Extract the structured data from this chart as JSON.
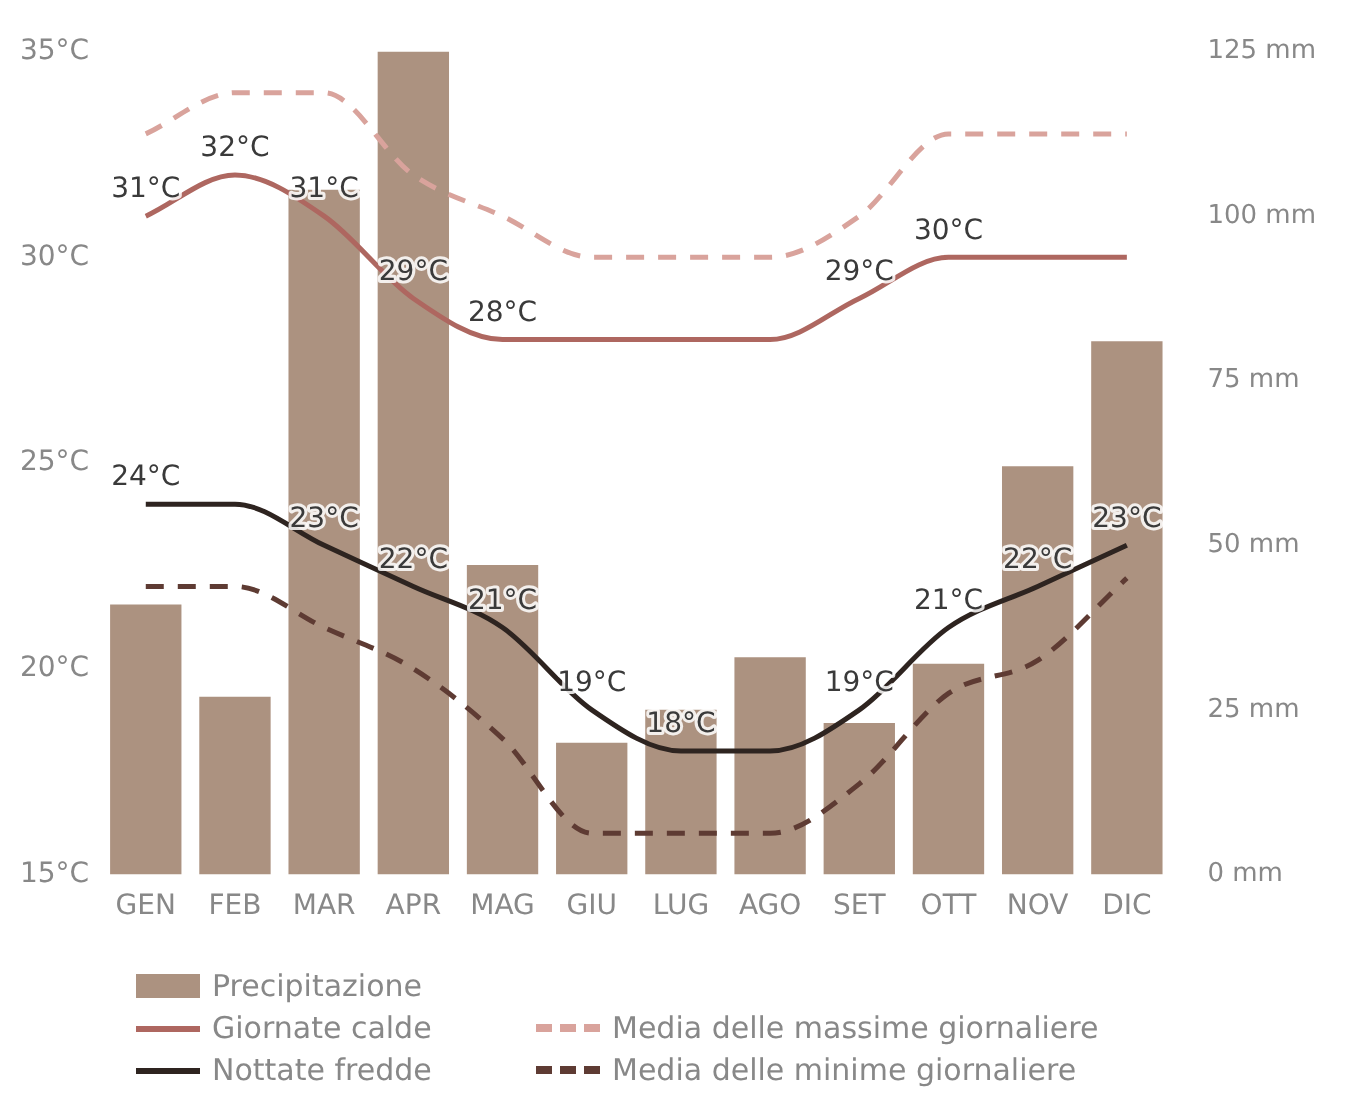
{
  "chart_data": {
    "type": "bar",
    "categories": [
      "GEN",
      "FEB",
      "MAR",
      "APR",
      "MAG",
      "GIU",
      "LUG",
      "AGO",
      "SET",
      "OTT",
      "NOV",
      "DIC"
    ],
    "series": [
      {
        "name": "Precipitazione",
        "axis": "y2",
        "color": "#ac9280",
        "values": [
          41,
          27,
          104,
          125,
          47,
          20,
          25,
          33,
          23,
          32,
          62,
          81
        ]
      },
      {
        "name": "Giornate calde",
        "type": "line",
        "color": "#ae6760",
        "line_style": "solid",
        "values": [
          31,
          32,
          31,
          29,
          28,
          28,
          28,
          28,
          29,
          30,
          30,
          30
        ],
        "value_labels": [
          "31°C",
          "32°C",
          "31°C",
          "29°C",
          "28°C",
          null,
          null,
          null,
          "29°C",
          "30°C",
          null,
          null
        ]
      },
      {
        "name": "Nottate fredde",
        "type": "line",
        "color": "#2e2420",
        "line_style": "solid",
        "values": [
          24,
          24,
          23,
          22,
          21,
          19,
          18,
          18,
          19,
          21,
          22,
          23
        ],
        "value_labels": [
          "24°C",
          null,
          "23°C",
          "22°C",
          "21°C",
          "19°C",
          "18°C",
          null,
          "19°C",
          "21°C",
          "22°C",
          "23°C"
        ]
      },
      {
        "name": "Media delle massime giornaliere",
        "type": "line",
        "color": "#d9a39c",
        "line_style": "dashed",
        "values": [
          33,
          34,
          34,
          32,
          31,
          30,
          30,
          30,
          31,
          33,
          33,
          33
        ]
      },
      {
        "name": "Media delle minime giornaliere",
        "type": "line",
        "color": "#5e3b33",
        "line_style": "dashed",
        "values": [
          22,
          22,
          21,
          20,
          18.3,
          16,
          16,
          16,
          17.2,
          19.4,
          20.2,
          22.2
        ]
      }
    ],
    "ylim": [
      15,
      35
    ],
    "yticks": [
      {
        "value": 15,
        "label": "15°C"
      },
      {
        "value": 20,
        "label": "20°C"
      },
      {
        "value": 25,
        "label": "25°C"
      },
      {
        "value": 30,
        "label": "30°C"
      },
      {
        "value": 35,
        "label": "35°C"
      }
    ],
    "y2lim": [
      0,
      125
    ],
    "y2ticks": [
      {
        "value": 0,
        "label": "0 mm"
      },
      {
        "value": 25,
        "label": "25 mm"
      },
      {
        "value": 50,
        "label": "50 mm"
      },
      {
        "value": 75,
        "label": "75 mm"
      },
      {
        "value": 100,
        "label": "100 mm"
      },
      {
        "value": 125,
        "label": "125 mm"
      }
    ],
    "grid": false,
    "legend": "bottom",
    "marker": "none"
  }
}
